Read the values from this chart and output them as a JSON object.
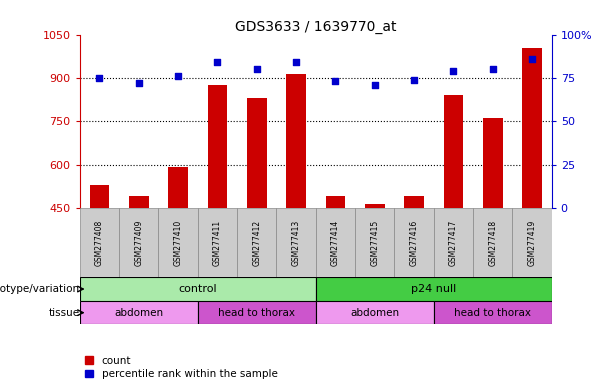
{
  "title": "GDS3633 / 1639770_at",
  "samples": [
    "GSM277408",
    "GSM277409",
    "GSM277410",
    "GSM277411",
    "GSM277412",
    "GSM277413",
    "GSM277414",
    "GSM277415",
    "GSM277416",
    "GSM277417",
    "GSM277418",
    "GSM277419"
  ],
  "counts": [
    530,
    490,
    590,
    875,
    830,
    915,
    490,
    465,
    490,
    840,
    760,
    1005
  ],
  "percentiles": [
    75,
    72,
    76,
    84,
    80,
    84,
    73,
    71,
    74,
    79,
    80,
    86
  ],
  "bar_color": "#cc0000",
  "dot_color": "#0000cc",
  "bar_bottom": 450,
  "ylim_left": [
    450,
    1050
  ],
  "ylim_right": [
    0,
    100
  ],
  "yticks_left": [
    450,
    600,
    750,
    900,
    1050
  ],
  "ytick_labels_left": [
    "450",
    "600",
    "750",
    "900",
    "1050"
  ],
  "yticks_right": [
    0,
    25,
    50,
    75,
    100
  ],
  "ytick_labels_right": [
    "0",
    "25",
    "50",
    "75",
    "100%"
  ],
  "hgrid_vals": [
    600,
    750,
    900
  ],
  "genotype_groups": [
    {
      "label": "control",
      "start": 0,
      "end": 6,
      "color": "#aaeaaa"
    },
    {
      "label": "p24 null",
      "start": 6,
      "end": 12,
      "color": "#44cc44"
    }
  ],
  "tissue_groups": [
    {
      "label": "abdomen",
      "start": 0,
      "end": 3,
      "color": "#ee99ee"
    },
    {
      "label": "head to thorax",
      "start": 3,
      "end": 6,
      "color": "#cc55cc"
    },
    {
      "label": "abdomen",
      "start": 6,
      "end": 9,
      "color": "#ee99ee"
    },
    {
      "label": "head to thorax",
      "start": 9,
      "end": 12,
      "color": "#cc55cc"
    }
  ],
  "legend_count_color": "#cc0000",
  "legend_pct_color": "#0000cc",
  "legend_count_label": "count",
  "legend_pct_label": "percentile rank within the sample",
  "genotype_label": "genotype/variation",
  "tissue_label": "tissue",
  "sample_cell_color": "#cccccc"
}
